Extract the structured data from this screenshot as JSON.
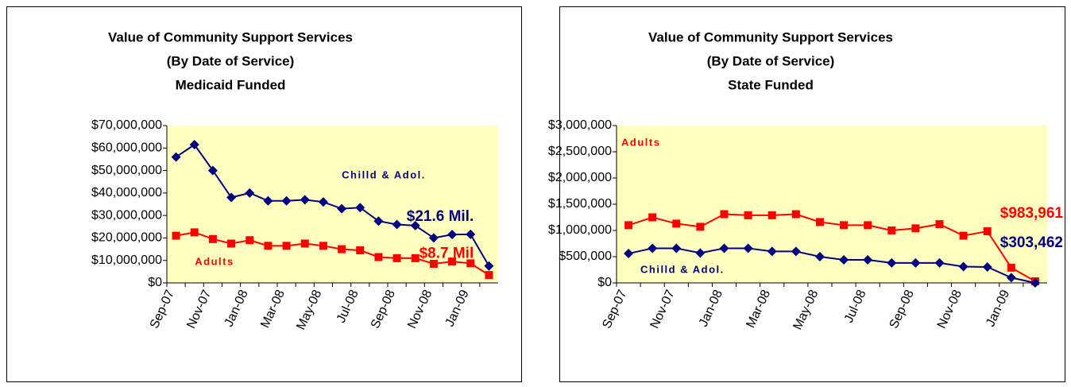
{
  "chart_data": [
    {
      "type": "line",
      "title": "Value of Community Support Services",
      "subtitle": [
        "(By Date of Service)",
        "Medicaid Funded"
      ],
      "categories": [
        "Sep-07",
        null,
        "Nov-07",
        null,
        "Jan-08",
        null,
        "Mar-08",
        null,
        "May-08",
        null,
        "Jul-08",
        null,
        "Sep-08",
        null,
        "Nov-08",
        null,
        "Jan-09",
        null
      ],
      "ylim": [
        0,
        70000000
      ],
      "yticks": [
        {
          "value": 0,
          "label": "$0"
        },
        {
          "value": 10000000,
          "label": "$10,000,000"
        },
        {
          "value": 20000000,
          "label": "$20,000,000"
        },
        {
          "value": 30000000,
          "label": "$30,000,000"
        },
        {
          "value": 40000000,
          "label": "$40,000,000"
        },
        {
          "value": 50000000,
          "label": "$50,000,000"
        },
        {
          "value": 60000000,
          "label": "$60,000,000"
        },
        {
          "value": 70000000,
          "label": "$70,000,000"
        }
      ],
      "plot_background": "#ffffc0",
      "series": [
        {
          "name": "Chilld & Adol.",
          "color": "#000080",
          "marker": "diamond",
          "values": [
            56000000,
            61500000,
            50000000,
            38000000,
            40000000,
            36500000,
            36500000,
            37000000,
            36000000,
            33000000,
            33500000,
            27500000,
            26000000,
            25500000,
            20000000,
            21500000,
            21600000,
            7500000
          ],
          "value_labels": [
            null,
            null,
            null,
            null,
            null,
            null,
            null,
            null,
            null,
            null,
            null,
            null,
            null,
            null,
            null,
            null,
            "$21.6 Mil.",
            null
          ]
        },
        {
          "name": "Adults",
          "color": "#ff0000",
          "marker": "square",
          "values": [
            21000000,
            22500000,
            19500000,
            17500000,
            19000000,
            16500000,
            16500000,
            17500000,
            16500000,
            15000000,
            14500000,
            11500000,
            11000000,
            11000000,
            8500000,
            9500000,
            8700000,
            3500000
          ],
          "value_labels": [
            null,
            null,
            null,
            null,
            null,
            null,
            null,
            null,
            null,
            null,
            null,
            null,
            null,
            null,
            null,
            null,
            "$8.7 Mil",
            null
          ]
        }
      ]
    },
    {
      "type": "line",
      "title": "Value of Community Support Services",
      "subtitle": [
        "(By Date of Service)",
        "State Funded"
      ],
      "categories": [
        "Sep-07",
        null,
        "Nov-07",
        null,
        "Jan-08",
        null,
        "Mar-08",
        null,
        "May-08",
        null,
        "Jul-08",
        null,
        "Sep-08",
        null,
        "Nov-08",
        null,
        "Jan-09",
        null
      ],
      "ylim": [
        0,
        3000000
      ],
      "yticks": [
        {
          "value": 0,
          "label": "$0"
        },
        {
          "value": 500000,
          "label": "$500,000"
        },
        {
          "value": 1000000,
          "label": "$1,000,000"
        },
        {
          "value": 1500000,
          "label": "$1,500,000"
        },
        {
          "value": 2000000,
          "label": "$2,000,000"
        },
        {
          "value": 2500000,
          "label": "$2,500,000"
        },
        {
          "value": 3000000,
          "label": "$3,000,000"
        }
      ],
      "plot_background": "#ffffc0",
      "series": [
        {
          "name": "Adults",
          "color": "#ff0000",
          "marker": "square",
          "values": [
            1100000,
            1250000,
            1130000,
            1070000,
            1310000,
            1290000,
            1290000,
            1310000,
            1160000,
            1100000,
            1100000,
            1000000,
            1040000,
            1120000,
            900000,
            983961,
            290000,
            30000
          ],
          "value_labels": [
            null,
            null,
            null,
            null,
            null,
            null,
            null,
            null,
            null,
            null,
            null,
            null,
            null,
            null,
            null,
            "$983,961",
            null,
            null
          ]
        },
        {
          "name": "Chilld & Adol.",
          "color": "#000080",
          "marker": "diamond",
          "values": [
            560000,
            660000,
            660000,
            570000,
            660000,
            660000,
            600000,
            600000,
            500000,
            440000,
            440000,
            380000,
            380000,
            380000,
            310000,
            303462,
            100000,
            0
          ],
          "value_labels": [
            null,
            null,
            null,
            null,
            null,
            null,
            null,
            null,
            null,
            null,
            null,
            null,
            null,
            null,
            null,
            "$303,462",
            null,
            null
          ]
        }
      ]
    }
  ]
}
